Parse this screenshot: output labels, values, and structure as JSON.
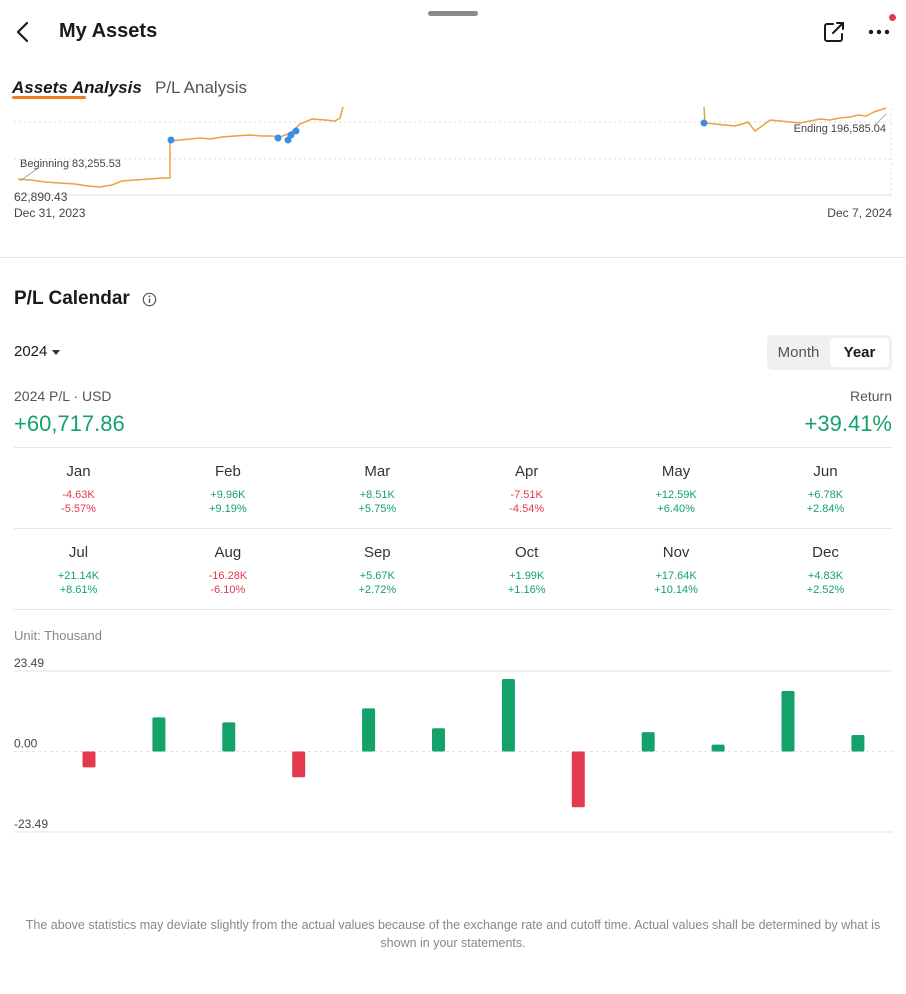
{
  "header": {
    "title": "My Assets",
    "back_icon": "chevron-left-icon",
    "share_icon": "share-icon",
    "more_icon": "more-icon"
  },
  "tabs": [
    {
      "label": "Assets Analysis",
      "active": true
    },
    {
      "label": "P/L Analysis",
      "active": false
    }
  ],
  "assets_chart": {
    "beginning_label": "Beginning 83,255.53",
    "ending_label": "Ending 196,585.04",
    "min_value_label": "62,890.43",
    "start_date": "Dec 31, 2023",
    "end_date": "Dec 7, 2024",
    "line_color": "#e8a33a",
    "marker_color": "#3a8ee6"
  },
  "calendar": {
    "title": "P/L Calendar",
    "year": "2024",
    "segment": {
      "month": "Month",
      "year": "Year",
      "selected": "Year"
    },
    "pl_label": "2024 P/L · USD",
    "pl_value": "+60,717.86",
    "return_label": "Return",
    "return_value": "+39.41%",
    "months": [
      {
        "name": "Jan",
        "amount": "-4.63K",
        "pct": "-5.57%",
        "sign": "neg"
      },
      {
        "name": "Feb",
        "amount": "+9.96K",
        "pct": "+9.19%",
        "sign": "pos"
      },
      {
        "name": "Mar",
        "amount": "+8.51K",
        "pct": "+5.75%",
        "sign": "pos"
      },
      {
        "name": "Apr",
        "amount": "-7.51K",
        "pct": "-4.54%",
        "sign": "neg"
      },
      {
        "name": "May",
        "amount": "+12.59K",
        "pct": "+6.40%",
        "sign": "pos"
      },
      {
        "name": "Jun",
        "amount": "+6.78K",
        "pct": "+2.84%",
        "sign": "pos"
      },
      {
        "name": "Jul",
        "amount": "+21.14K",
        "pct": "+8.61%",
        "sign": "pos"
      },
      {
        "name": "Aug",
        "amount": "-16.28K",
        "pct": "-6.10%",
        "sign": "neg"
      },
      {
        "name": "Sep",
        "amount": "+5.67K",
        "pct": "+2.72%",
        "sign": "pos"
      },
      {
        "name": "Oct",
        "amount": "+1.99K",
        "pct": "+1.16%",
        "sign": "pos"
      },
      {
        "name": "Nov",
        "amount": "+17.64K",
        "pct": "+10.14%",
        "sign": "pos"
      },
      {
        "name": "Dec",
        "amount": "+4.83K",
        "pct": "+2.52%",
        "sign": "pos"
      }
    ],
    "unit_label": "Unit: Thousand"
  },
  "colors": {
    "positive": "#13a36a",
    "negative": "#e5394d",
    "accent": "#f07b20"
  },
  "chart_data": {
    "type": "bar",
    "categories": [
      "Jan",
      "Feb",
      "Mar",
      "Apr",
      "May",
      "Jun",
      "Jul",
      "Aug",
      "Sep",
      "Oct",
      "Nov",
      "Dec"
    ],
    "values": [
      -4.63,
      9.96,
      8.51,
      -7.51,
      12.59,
      6.78,
      21.14,
      -16.28,
      5.67,
      1.99,
      17.64,
      4.83
    ],
    "ylim": [
      -23.49,
      23.49
    ],
    "ytick_labels": [
      "23.49",
      "0.00",
      "-23.49"
    ],
    "grid": true
  },
  "disclaimer": "The above statistics may deviate slightly from the actual values because of the exchange rate and cutoff time. Actual values shall be determined by what is shown in your statements."
}
